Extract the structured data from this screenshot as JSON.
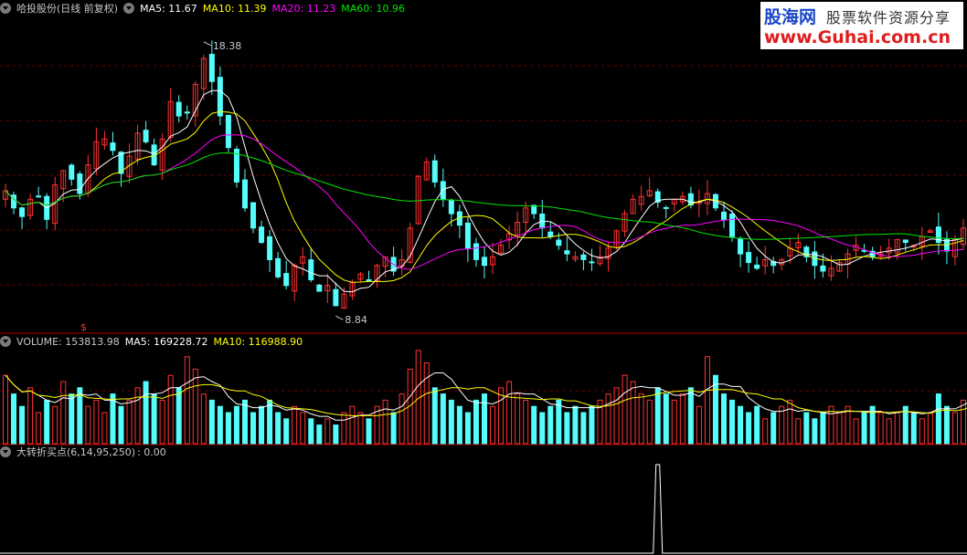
{
  "header_main": {
    "stock": "哈投股份(日线 前复权)",
    "ma5": "MA5: 11.67",
    "ma10": "MA10: 11.39",
    "ma20": "MA20: 11.23",
    "ma60": "MA60: 10.96"
  },
  "header_volume": {
    "volume": "VOLUME: 153813.98",
    "ma5": "MA5: 169228.72",
    "ma10": "MA10: 116988.90"
  },
  "header_indicator": {
    "name": "大转折买点(6,14,95,250)",
    "value": ": 0.00"
  },
  "watermark": {
    "brand": "股海网",
    "slogan": "股票软件资源分享",
    "url": "www.Guhai.com.cn"
  },
  "colors": {
    "up": "#ff3232",
    "down": "#54fcfc",
    "ma5": "#ffffff",
    "ma10": "#ffff00",
    "ma20": "#ff00ff",
    "ma60": "#00e600"
  },
  "chart_data": [
    {
      "type": "candlestick",
      "annotations": [
        {
          "label": "18.38",
          "value": 18.38,
          "kind": "high"
        },
        {
          "label": "8.84",
          "value": 8.84,
          "kind": "low"
        }
      ],
      "marker": "$",
      "ma_legend": [
        "MA5",
        "MA10",
        "MA20",
        "MA60"
      ],
      "ylim": [
        8.4,
        19.2
      ],
      "grid": true,
      "close_series": [
        13.2,
        12.6,
        12.3,
        12.9,
        13.0,
        12.2,
        13.4,
        13.9,
        13.6,
        13.1,
        14.1,
        14.9,
        15.0,
        14.6,
        13.8,
        14.4,
        15.2,
        14.9,
        14.1,
        15.0,
        16.3,
        15.8,
        15.9,
        16.9,
        17.8,
        17.0,
        15.8,
        14.7,
        13.5,
        12.6,
        11.9,
        11.4,
        10.8,
        10.2,
        9.9,
        10.6,
        10.9,
        10.1,
        9.7,
        9.9,
        9.2,
        9.6,
        10.0,
        10.3,
        10.1,
        10.6,
        10.9,
        10.4,
        10.8,
        11.9,
        13.7,
        14.2,
        13.5,
        12.9,
        12.4,
        12.0,
        11.2,
        10.8,
        10.6,
        10.9,
        11.3,
        11.7,
        12.1,
        12.6,
        12.4,
        11.9,
        11.6,
        11.3,
        11.0,
        10.9,
        10.8,
        10.7,
        10.9,
        11.2,
        11.8,
        12.4,
        12.9,
        13.0,
        13.2,
        12.8,
        12.6,
        12.9,
        13.0,
        12.7,
        12.8,
        13.1,
        12.6,
        12.2,
        11.6,
        11.0,
        10.7,
        10.5,
        10.8,
        10.6,
        10.8,
        11.2,
        11.4,
        10.9,
        10.6,
        10.4,
        10.5,
        10.7,
        11.0,
        11.3,
        11.1,
        10.9,
        11.0,
        11.2,
        11.5,
        11.4,
        11.3,
        11.6,
        11.8,
        11.4,
        11.1,
        11.5,
        11.9
      ]
    },
    {
      "type": "bar",
      "title": "VOLUME",
      "ma_legend": [
        "MA5",
        "MA10"
      ],
      "values": [
        11,
        8,
        6,
        9,
        5,
        7,
        6,
        10,
        8,
        9,
        6,
        7,
        5,
        8,
        6,
        7,
        9,
        10,
        8,
        7,
        11,
        9,
        14,
        12,
        8,
        7,
        6,
        5,
        6,
        7,
        5,
        6,
        7,
        5,
        4,
        6,
        5,
        4,
        3,
        4,
        3,
        5,
        6,
        5,
        4,
        6,
        7,
        5,
        8,
        12,
        15,
        13,
        9,
        8,
        7,
        6,
        5,
        7,
        8,
        6,
        9,
        10,
        8,
        7,
        6,
        5,
        6,
        7,
        5,
        6,
        5,
        6,
        7,
        8,
        9,
        11,
        10,
        8,
        7,
        9,
        8,
        7,
        8,
        9,
        6,
        14,
        11,
        8,
        7,
        6,
        5,
        6,
        4,
        5,
        6,
        7,
        4,
        5,
        4,
        5,
        6,
        5,
        6,
        4,
        5,
        6,
        5,
        4,
        5,
        6,
        5,
        4,
        5,
        8,
        6,
        5,
        7,
        9
      ]
    },
    {
      "type": "line",
      "title": "大转折买点(6,14,95,250)",
      "value": 0.0,
      "spike_index": 79
    }
  ]
}
